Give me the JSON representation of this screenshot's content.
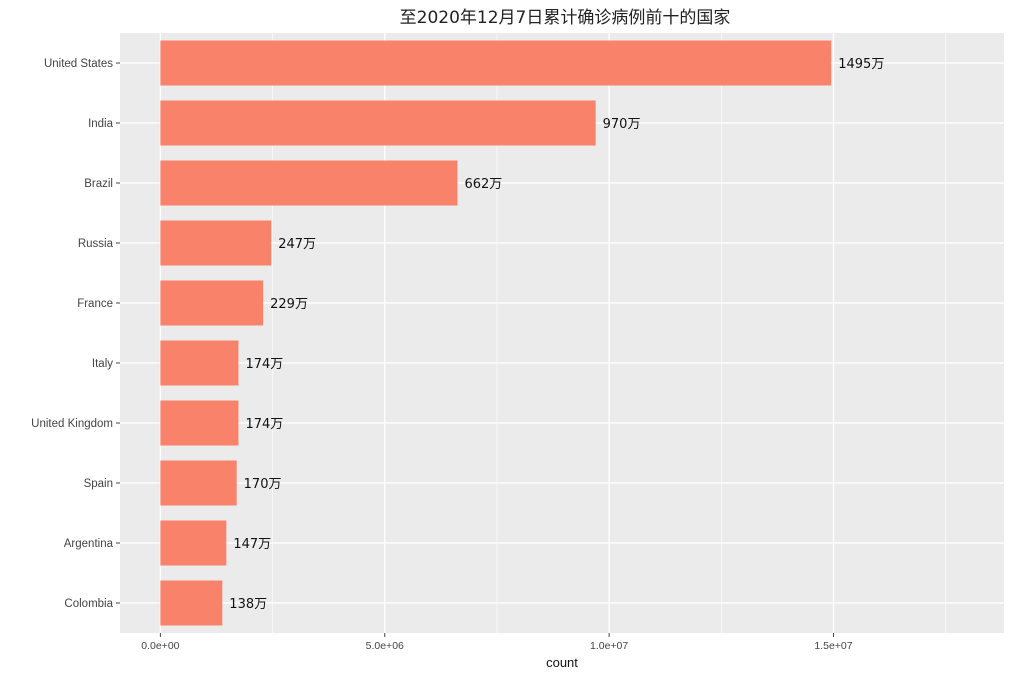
{
  "chart_data": {
    "type": "bar",
    "orientation": "horizontal",
    "title": "至2020年12月7日累计确诊病例前十的国家",
    "xlabel": "count",
    "ylabel": "",
    "categories": [
      "United States",
      "India",
      "Brazil",
      "Russia",
      "France",
      "Italy",
      "United Kingdom",
      "Spain",
      "Argentina",
      "Colombia"
    ],
    "values": [
      14950000,
      9700000,
      6620000,
      2470000,
      2290000,
      1740000,
      1740000,
      1700000,
      1470000,
      1380000
    ],
    "data_labels": [
      "1495万",
      "970万",
      "662万",
      "247万",
      "229万",
      "174万",
      "174万",
      "170万",
      "147万",
      "138万"
    ],
    "x_ticks": [
      0,
      5000000,
      10000000,
      15000000
    ],
    "x_tick_labels": [
      "0.0e+00",
      "5.0e+06",
      "1.0e+07",
      "1.5e+07"
    ],
    "xlim": [
      -900000,
      18800000
    ],
    "bar_color": "#F8826A",
    "panel_color": "#EBEBEB",
    "grid": true,
    "legend": "none"
  }
}
